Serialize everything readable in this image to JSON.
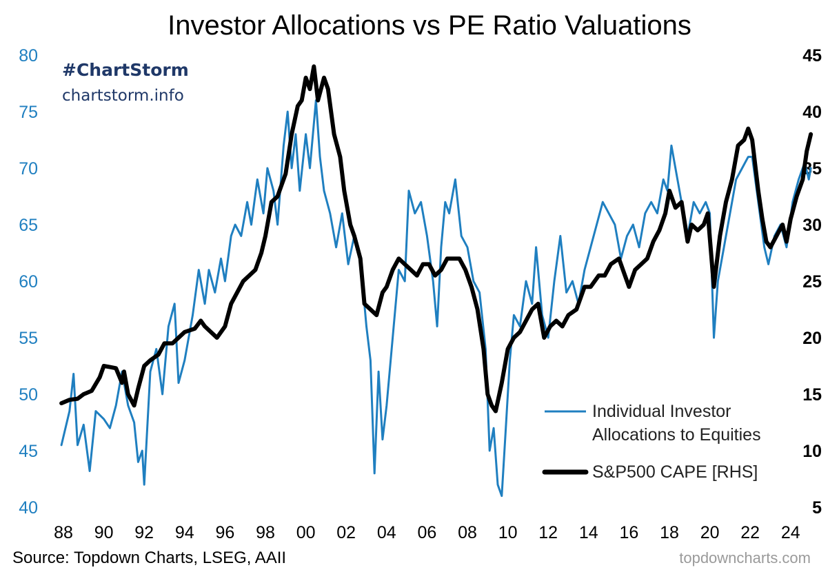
{
  "chart_data": {
    "type": "line",
    "title": "Investor Allocations vs PE Ratio Valuations",
    "brand": "#ChartStorm",
    "brand_url": "chartstorm.info",
    "source": "Source: Topdown Charts, LSEG, AAII",
    "watermark": "topdowncharts.com",
    "x_ticks": [
      "88",
      "90",
      "92",
      "94",
      "96",
      "98",
      "00",
      "02",
      "04",
      "06",
      "08",
      "10",
      "12",
      "14",
      "16",
      "18",
      "20",
      "22",
      "24"
    ],
    "y_left": {
      "min": 40,
      "max": 80,
      "ticks": [
        40,
        45,
        50,
        55,
        60,
        65,
        70,
        75,
        80
      ]
    },
    "y_right": {
      "min": 5,
      "max": 45,
      "ticks": [
        5,
        10,
        15,
        20,
        25,
        30,
        35,
        40,
        45
      ]
    },
    "legend": {
      "position": "bottom-right"
    },
    "series": [
      {
        "name": "Individual Investor Allocations to Equities",
        "axis": "left",
        "color": "#1f7fc0",
        "legend_lines": [
          "Individual Investor",
          "Allocations to Equities"
        ],
        "points": [
          [
            1987.9,
            45.5
          ],
          [
            1988.3,
            48.5
          ],
          [
            1988.5,
            51.8
          ],
          [
            1988.7,
            45.5
          ],
          [
            1989.0,
            47.3
          ],
          [
            1989.3,
            43.2
          ],
          [
            1989.6,
            48.5
          ],
          [
            1990.0,
            47.8
          ],
          [
            1990.3,
            47.0
          ],
          [
            1990.6,
            49.0
          ],
          [
            1990.9,
            52.0
          ],
          [
            1991.2,
            49.0
          ],
          [
            1991.5,
            47.5
          ],
          [
            1991.7,
            44.0
          ],
          [
            1991.9,
            45.0
          ],
          [
            1992.0,
            42.0
          ],
          [
            1992.3,
            52.0
          ],
          [
            1992.6,
            54.0
          ],
          [
            1992.9,
            50.0
          ],
          [
            1993.2,
            56.0
          ],
          [
            1993.5,
            58.0
          ],
          [
            1993.7,
            51.0
          ],
          [
            1994.0,
            53.0
          ],
          [
            1994.4,
            57.0
          ],
          [
            1994.7,
            61.0
          ],
          [
            1995.0,
            58.0
          ],
          [
            1995.2,
            61.0
          ],
          [
            1995.5,
            59.0
          ],
          [
            1995.8,
            62.0
          ],
          [
            1996.0,
            60.0
          ],
          [
            1996.3,
            64.0
          ],
          [
            1996.5,
            65.0
          ],
          [
            1996.8,
            64.0
          ],
          [
            1997.1,
            67.0
          ],
          [
            1997.3,
            65.0
          ],
          [
            1997.6,
            69.0
          ],
          [
            1997.9,
            66.0
          ],
          [
            1998.1,
            70.0
          ],
          [
            1998.4,
            68.0
          ],
          [
            1998.6,
            65.0
          ],
          [
            1998.9,
            72.0
          ],
          [
            1999.1,
            75.0
          ],
          [
            1999.3,
            70.0
          ],
          [
            1999.5,
            73.0
          ],
          [
            1999.7,
            68.0
          ],
          [
            2000.0,
            73.0
          ],
          [
            2000.2,
            70.0
          ],
          [
            2000.5,
            76.0
          ],
          [
            2000.7,
            71.0
          ],
          [
            2000.9,
            68.0
          ],
          [
            2001.2,
            66.0
          ],
          [
            2001.5,
            63.0
          ],
          [
            2001.8,
            66.0
          ],
          [
            2002.1,
            61.5
          ],
          [
            2002.4,
            64.0
          ],
          [
            2002.7,
            62.0
          ],
          [
            2003.0,
            56.0
          ],
          [
            2003.2,
            53.0
          ],
          [
            2003.4,
            43.0
          ],
          [
            2003.6,
            52.0
          ],
          [
            2003.8,
            46.0
          ],
          [
            2004.0,
            49.0
          ],
          [
            2004.3,
            55.0
          ],
          [
            2004.6,
            61.0
          ],
          [
            2004.9,
            60.0
          ],
          [
            2005.1,
            68.0
          ],
          [
            2005.4,
            66.0
          ],
          [
            2005.7,
            67.0
          ],
          [
            2006.0,
            64.0
          ],
          [
            2006.3,
            60.0
          ],
          [
            2006.5,
            56.0
          ],
          [
            2006.7,
            63.0
          ],
          [
            2006.9,
            67.0
          ],
          [
            2007.1,
            66.0
          ],
          [
            2007.4,
            69.0
          ],
          [
            2007.7,
            64.0
          ],
          [
            2008.0,
            63.0
          ],
          [
            2008.3,
            60.0
          ],
          [
            2008.6,
            59.0
          ],
          [
            2008.9,
            54.0
          ],
          [
            2009.1,
            45.0
          ],
          [
            2009.3,
            47.0
          ],
          [
            2009.5,
            42.0
          ],
          [
            2009.7,
            41.0
          ],
          [
            2009.9,
            47.0
          ],
          [
            2010.1,
            53.0
          ],
          [
            2010.3,
            57.0
          ],
          [
            2010.6,
            56.0
          ],
          [
            2010.9,
            60.0
          ],
          [
            2011.2,
            58.0
          ],
          [
            2011.4,
            63.0
          ],
          [
            2011.7,
            57.0
          ],
          [
            2012.0,
            55.0
          ],
          [
            2012.3,
            60.0
          ],
          [
            2012.6,
            64.0
          ],
          [
            2012.9,
            59.0
          ],
          [
            2013.2,
            60.0
          ],
          [
            2013.5,
            58.0
          ],
          [
            2013.8,
            61.0
          ],
          [
            2014.1,
            63.0
          ],
          [
            2014.4,
            65.0
          ],
          [
            2014.7,
            67.0
          ],
          [
            2015.0,
            66.0
          ],
          [
            2015.3,
            65.0
          ],
          [
            2015.6,
            62.0
          ],
          [
            2015.9,
            64.0
          ],
          [
            2016.2,
            65.0
          ],
          [
            2016.5,
            63.0
          ],
          [
            2016.8,
            66.0
          ],
          [
            2017.1,
            67.0
          ],
          [
            2017.4,
            66.0
          ],
          [
            2017.7,
            69.0
          ],
          [
            2017.9,
            68.0
          ],
          [
            2018.1,
            72.0
          ],
          [
            2018.4,
            69.0
          ],
          [
            2018.7,
            66.0
          ],
          [
            2018.9,
            64.0
          ],
          [
            2019.2,
            67.0
          ],
          [
            2019.5,
            66.0
          ],
          [
            2019.8,
            67.0
          ],
          [
            2020.0,
            66.0
          ],
          [
            2020.2,
            55.0
          ],
          [
            2020.4,
            60.0
          ],
          [
            2020.7,
            63.0
          ],
          [
            2021.0,
            66.0
          ],
          [
            2021.3,
            69.0
          ],
          [
            2021.6,
            70.0
          ],
          [
            2021.9,
            71.0
          ],
          [
            2022.1,
            71.0
          ],
          [
            2022.4,
            67.0
          ],
          [
            2022.7,
            63.0
          ],
          [
            2022.9,
            61.5
          ],
          [
            2023.2,
            64.0
          ],
          [
            2023.5,
            65.0
          ],
          [
            2023.8,
            63.0
          ],
          [
            2024.1,
            67.0
          ],
          [
            2024.4,
            69.0
          ],
          [
            2024.7,
            70.5
          ],
          [
            2024.9,
            69.0
          ],
          [
            2025.0,
            70.0
          ]
        ]
      },
      {
        "name": "S&P500 CAPE [RHS]",
        "axis": "right",
        "color": "#000000",
        "legend_lines": [
          "S&P500 CAPE [RHS]"
        ],
        "points": [
          [
            1987.9,
            14.2
          ],
          [
            1988.3,
            14.5
          ],
          [
            1988.7,
            14.6
          ],
          [
            1989.0,
            15.0
          ],
          [
            1989.4,
            15.3
          ],
          [
            1989.8,
            16.5
          ],
          [
            1990.0,
            17.5
          ],
          [
            1990.3,
            17.4
          ],
          [
            1990.6,
            17.3
          ],
          [
            1990.9,
            16.0
          ],
          [
            1991.0,
            17.0
          ],
          [
            1991.2,
            15.0
          ],
          [
            1991.5,
            14.0
          ],
          [
            1991.7,
            15.5
          ],
          [
            1992.0,
            17.5
          ],
          [
            1992.3,
            18.0
          ],
          [
            1992.7,
            18.5
          ],
          [
            1993.0,
            19.5
          ],
          [
            1993.4,
            19.5
          ],
          [
            1993.7,
            20.0
          ],
          [
            1994.0,
            20.5
          ],
          [
            1994.5,
            20.8
          ],
          [
            1994.8,
            21.5
          ],
          [
            1995.0,
            21.0
          ],
          [
            1995.3,
            20.5
          ],
          [
            1995.6,
            20.0
          ],
          [
            1996.0,
            21.0
          ],
          [
            1996.3,
            23.0
          ],
          [
            1996.6,
            24.0
          ],
          [
            1996.9,
            25.0
          ],
          [
            1997.2,
            25.5
          ],
          [
            1997.5,
            26.0
          ],
          [
            1997.8,
            27.5
          ],
          [
            1998.0,
            29.0
          ],
          [
            1998.3,
            32.0
          ],
          [
            1998.6,
            32.5
          ],
          [
            1998.8,
            33.5
          ],
          [
            1999.0,
            34.5
          ],
          [
            1999.3,
            38.0
          ],
          [
            1999.6,
            40.5
          ],
          [
            1999.8,
            41.0
          ],
          [
            2000.0,
            43.0
          ],
          [
            2000.2,
            42.0
          ],
          [
            2000.4,
            44.0
          ],
          [
            2000.6,
            41.0
          ],
          [
            2000.9,
            43.0
          ],
          [
            2001.1,
            42.0
          ],
          [
            2001.4,
            38.0
          ],
          [
            2001.7,
            36.0
          ],
          [
            2001.9,
            33.0
          ],
          [
            2002.2,
            30.0
          ],
          [
            2002.4,
            29.0
          ],
          [
            2002.7,
            27.0
          ],
          [
            2002.9,
            23.0
          ],
          [
            2003.2,
            22.5
          ],
          [
            2003.5,
            22.0
          ],
          [
            2003.8,
            24.0
          ],
          [
            2004.0,
            24.5
          ],
          [
            2004.3,
            26.0
          ],
          [
            2004.6,
            27.0
          ],
          [
            2004.9,
            26.5
          ],
          [
            2005.2,
            26.0
          ],
          [
            2005.5,
            25.5
          ],
          [
            2005.8,
            26.5
          ],
          [
            2006.1,
            26.5
          ],
          [
            2006.4,
            25.5
          ],
          [
            2006.7,
            26.0
          ],
          [
            2007.0,
            27.0
          ],
          [
            2007.3,
            27.0
          ],
          [
            2007.6,
            27.0
          ],
          [
            2007.9,
            26.0
          ],
          [
            2008.2,
            24.5
          ],
          [
            2008.5,
            22.5
          ],
          [
            2008.8,
            19.0
          ],
          [
            2009.0,
            15.0
          ],
          [
            2009.2,
            14.0
          ],
          [
            2009.4,
            13.5
          ],
          [
            2009.7,
            16.0
          ],
          [
            2010.0,
            19.0
          ],
          [
            2010.3,
            20.0
          ],
          [
            2010.6,
            20.5
          ],
          [
            2010.9,
            21.5
          ],
          [
            2011.2,
            22.5
          ],
          [
            2011.5,
            23.0
          ],
          [
            2011.8,
            20.0
          ],
          [
            2012.1,
            21.0
          ],
          [
            2012.4,
            21.5
          ],
          [
            2012.7,
            21.0
          ],
          [
            2013.0,
            22.0
          ],
          [
            2013.4,
            22.5
          ],
          [
            2013.8,
            24.5
          ],
          [
            2014.1,
            24.5
          ],
          [
            2014.5,
            25.5
          ],
          [
            2014.8,
            25.5
          ],
          [
            2015.1,
            26.5
          ],
          [
            2015.5,
            27.0
          ],
          [
            2015.8,
            25.5
          ],
          [
            2016.0,
            24.5
          ],
          [
            2016.3,
            26.0
          ],
          [
            2016.6,
            26.5
          ],
          [
            2016.9,
            27.0
          ],
          [
            2017.2,
            28.5
          ],
          [
            2017.5,
            29.5
          ],
          [
            2017.8,
            31.0
          ],
          [
            2018.0,
            33.0
          ],
          [
            2018.3,
            31.5
          ],
          [
            2018.6,
            32.0
          ],
          [
            2018.9,
            28.5
          ],
          [
            2019.1,
            30.0
          ],
          [
            2019.4,
            29.5
          ],
          [
            2019.7,
            30.0
          ],
          [
            2019.9,
            31.0
          ],
          [
            2020.2,
            24.5
          ],
          [
            2020.5,
            29.0
          ],
          [
            2020.8,
            32.0
          ],
          [
            2021.1,
            34.0
          ],
          [
            2021.4,
            37.0
          ],
          [
            2021.7,
            37.5
          ],
          [
            2021.9,
            38.5
          ],
          [
            2022.1,
            37.5
          ],
          [
            2022.4,
            33.0
          ],
          [
            2022.6,
            30.5
          ],
          [
            2022.8,
            28.5
          ],
          [
            2023.0,
            28.0
          ],
          [
            2023.3,
            29.0
          ],
          [
            2023.6,
            30.0
          ],
          [
            2023.8,
            28.5
          ],
          [
            2024.0,
            30.5
          ],
          [
            2024.3,
            32.5
          ],
          [
            2024.6,
            34.0
          ],
          [
            2024.8,
            36.5
          ],
          [
            2025.0,
            38.0
          ]
        ]
      }
    ]
  }
}
